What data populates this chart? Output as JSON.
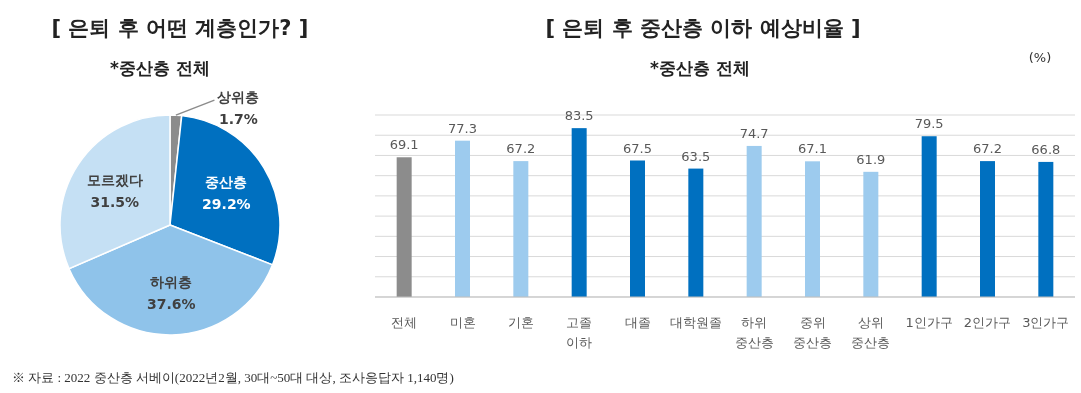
{
  "chart_data": [
    {
      "type": "pie",
      "title": "[ 은퇴 후 어떤 계층인가? ]",
      "subtitle": "*중산층 전체",
      "categories": [
        "상위층",
        "중산층",
        "하위층",
        "모르겠다"
      ],
      "values": [
        1.7,
        29.2,
        37.6,
        31.5
      ],
      "colors": [
        "#8c8c8c",
        "#0070c0",
        "#8fc3ea",
        "#c5e0f4"
      ],
      "value_labels": [
        "1.7%",
        "29.2%",
        "37.6%",
        "31.5%"
      ],
      "annotations": [
        "※ 자료 : 2022 중산층 서베이(2022년2월, 30대~50대 대상, 조사응답자 1,140명)"
      ]
    },
    {
      "type": "bar",
      "title": "[ 은퇴 후 중산층 이하 예상비율 ]",
      "subtitle": "*중산층 전체",
      "categories": [
        "전체",
        "미혼",
        "기혼",
        "고졸\n이하",
        "대졸",
        "대학원졸",
        "하위\n중산층",
        "중위\n중산층",
        "상위\n중산층",
        "1인가구",
        "2인가구",
        "3인가구"
      ],
      "values": [
        69.1,
        77.3,
        67.2,
        83.5,
        67.5,
        63.5,
        74.7,
        67.1,
        61.9,
        79.5,
        67.2,
        66.8
      ],
      "colors": [
        "#8c8c8c",
        "#9dcbee",
        "#9dcbee",
        "#0070c0",
        "#0070c0",
        "#0070c0",
        "#9dcbee",
        "#9dcbee",
        "#9dcbee",
        "#0070c0",
        "#0070c0",
        "#0070c0"
      ],
      "data_labels": true,
      "ylim": [
        0,
        90
      ],
      "yticks": [
        {
          "value": 0,
          "label": null
        },
        {
          "value": 10,
          "label": null
        },
        {
          "value": 20,
          "label": null
        },
        {
          "value": 30,
          "label": null
        },
        {
          "value": 40,
          "label": null
        },
        {
          "value": 50,
          "label": null
        },
        {
          "value": 60,
          "label": null
        },
        {
          "value": 70,
          "label": null
        },
        {
          "value": 80,
          "label": null
        },
        {
          "value": 90,
          "label": null
        }
      ],
      "grid": "y",
      "annotations": [
        "(%)"
      ]
    }
  ]
}
